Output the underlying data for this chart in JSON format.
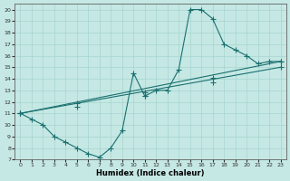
{
  "xlabel": "Humidex (Indice chaleur)",
  "ylabel": "",
  "xlim": [
    -0.5,
    23.5
  ],
  "ylim": [
    7,
    20.5
  ],
  "yticks": [
    7,
    8,
    9,
    10,
    11,
    12,
    13,
    14,
    15,
    16,
    17,
    18,
    19,
    20
  ],
  "xticks": [
    0,
    1,
    2,
    3,
    4,
    5,
    6,
    7,
    8,
    9,
    10,
    11,
    12,
    13,
    14,
    15,
    16,
    17,
    18,
    19,
    20,
    21,
    22,
    23
  ],
  "bg_color": "#c5e8e4",
  "grid_color": "#a8d4cf",
  "line_color": "#1a7070",
  "line1_x": [
    0,
    1,
    2,
    3,
    4,
    5,
    6,
    7,
    8,
    9,
    10,
    11,
    12,
    13,
    14,
    15,
    16,
    17,
    18,
    19,
    20,
    21,
    22,
    23
  ],
  "line1_y": [
    11,
    10.5,
    10,
    9,
    8.5,
    8,
    7.5,
    7.2,
    8,
    9.5,
    14.5,
    12.5,
    13,
    13,
    14.8,
    20,
    20,
    19.2,
    17,
    16.5,
    16,
    15.3,
    15.5,
    15.5
  ],
  "line2_x": [
    0,
    23
  ],
  "line2_y": [
    11,
    15.5
  ],
  "line3_x": [
    0,
    23
  ],
  "line3_y": [
    11,
    15.0
  ],
  "marker_x": [
    0,
    1,
    2,
    3,
    4,
    5,
    6,
    7,
    8,
    9,
    10,
    11,
    12,
    13,
    14,
    15,
    16,
    17,
    18,
    19,
    20,
    21,
    22,
    23
  ],
  "marker_y": [
    11,
    10.5,
    10,
    9,
    8.5,
    8,
    7.5,
    7.2,
    8,
    9.5,
    14.5,
    12.5,
    13,
    13,
    14.8,
    20,
    20,
    19.2,
    17,
    16.5,
    16,
    15.3,
    15.5,
    15.5
  ],
  "line2_marker_x": [
    0,
    5,
    11,
    17,
    23
  ],
  "line2_marker_y": [
    11,
    11.9,
    12.8,
    14.1,
    15.5
  ],
  "line3_marker_x": [
    0,
    5,
    11,
    17,
    23
  ],
  "line3_marker_y": [
    11,
    11.6,
    12.5,
    13.7,
    15.0
  ],
  "xlabel_fontsize": 6,
  "tick_fontsize": 4.5
}
